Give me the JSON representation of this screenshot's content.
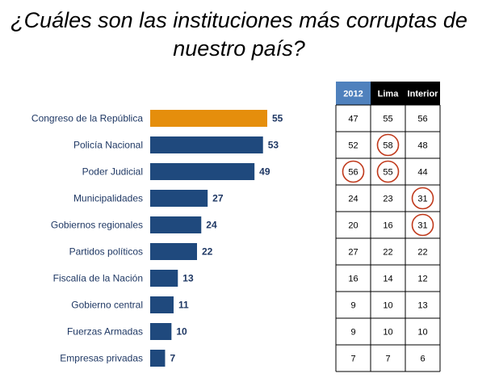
{
  "title": "¿Cuáles son las instituciones más corruptas de nuestro país?",
  "chart_data": {
    "type": "bar",
    "orientation": "horizontal",
    "categories": [
      "Congreso de la República",
      "Policía Nacional",
      "Poder Judicial",
      "Municipalidades",
      "Gobiernos regionales",
      "Partidos políticos",
      "Fiscalía de la Nación",
      "Gobierno central",
      "Fuerzas Armadas",
      "Empresas privadas"
    ],
    "values": [
      55,
      53,
      49,
      27,
      24,
      22,
      13,
      11,
      10,
      7
    ],
    "highlight_index": 0,
    "colors": {
      "bar": "#1f497d",
      "highlight": "#e58e0c",
      "label": "#1f3864",
      "circle": "#c0391b"
    },
    "table": {
      "columns": [
        {
          "label": "2012",
          "header_color": "#4f81bd"
        },
        {
          "label": "Lima",
          "header_color": "#000000"
        },
        {
          "label": "Interior",
          "header_color": "#000000"
        }
      ],
      "rows": [
        [
          47,
          55,
          56
        ],
        [
          52,
          58,
          48
        ],
        [
          56,
          55,
          44
        ],
        [
          24,
          23,
          31
        ],
        [
          20,
          16,
          31
        ],
        [
          27,
          22,
          22
        ],
        [
          16,
          14,
          12
        ],
        [
          9,
          10,
          13
        ],
        [
          9,
          10,
          10
        ],
        [
          7,
          7,
          6
        ]
      ],
      "circled": [
        [
          1,
          1
        ],
        [
          2,
          0
        ],
        [
          2,
          1
        ],
        [
          3,
          2
        ],
        [
          4,
          2
        ]
      ]
    }
  }
}
